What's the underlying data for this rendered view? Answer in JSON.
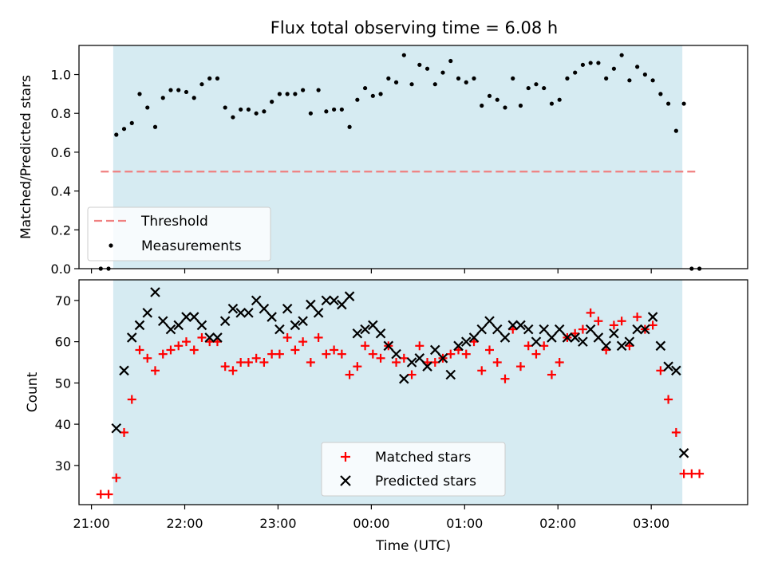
{
  "chart_data": [
    {
      "type": "scatter",
      "title": "Flux total observing time = 6.08 h",
      "ylabel": "Matched/Predicted stars",
      "xlabel": "",
      "ylim": [
        0,
        1.15
      ],
      "xlim": [
        "20:52",
        "04:02"
      ],
      "grid": false,
      "legend_position": "lower-left",
      "yticks": [
        "0.0",
        "0.2",
        "0.4",
        "0.6",
        "0.8",
        "1.0"
      ],
      "observing_window": [
        "21:14",
        "03:20"
      ],
      "observing_window_color": "#add8e6",
      "threshold": {
        "name": "Threshold",
        "y": 0.5,
        "x_range": [
          "21:06",
          "03:29"
        ],
        "color": "#f08080",
        "style": "dashed"
      },
      "series": [
        {
          "name": "Measurements",
          "color": "#000000",
          "marker": "dot",
          "x": [
            "21:06",
            "21:11",
            "21:16",
            "21:21",
            "21:26",
            "21:31",
            "21:36",
            "21:41",
            "21:46",
            "21:51",
            "21:56",
            "22:01",
            "22:06",
            "22:11",
            "22:16",
            "22:21",
            "22:26",
            "22:31",
            "22:36",
            "22:41",
            "22:46",
            "22:51",
            "22:56",
            "23:01",
            "23:06",
            "23:11",
            "23:16",
            "23:21",
            "23:26",
            "23:31",
            "23:36",
            "23:41",
            "23:46",
            "23:51",
            "23:56",
            "00:01",
            "00:06",
            "00:11",
            "00:16",
            "00:21",
            "00:26",
            "00:31",
            "00:36",
            "00:41",
            "00:46",
            "00:51",
            "00:56",
            "01:01",
            "01:06",
            "01:11",
            "01:16",
            "01:21",
            "01:26",
            "01:31",
            "01:36",
            "01:41",
            "01:46",
            "01:51",
            "01:56",
            "02:01",
            "02:06",
            "02:11",
            "02:16",
            "02:21",
            "02:26",
            "02:31",
            "02:36",
            "02:41",
            "02:46",
            "02:51",
            "02:56",
            "03:01",
            "03:06",
            "03:11",
            "03:16",
            "03:21",
            "03:26",
            "03:31"
          ],
          "y": [
            0.0,
            0.0,
            0.69,
            0.72,
            0.75,
            0.9,
            0.83,
            0.73,
            0.88,
            0.92,
            0.92,
            0.91,
            0.88,
            0.95,
            0.98,
            0.98,
            0.83,
            0.78,
            0.82,
            0.82,
            0.8,
            0.81,
            0.86,
            0.9,
            0.9,
            0.9,
            0.92,
            0.8,
            0.92,
            0.81,
            0.82,
            0.82,
            0.73,
            0.87,
            0.93,
            0.89,
            0.9,
            0.98,
            0.96,
            1.1,
            0.95,
            1.05,
            1.03,
            0.95,
            1.01,
            1.07,
            0.98,
            0.96,
            0.98,
            0.84,
            0.89,
            0.87,
            0.83,
            0.98,
            0.84,
            0.93,
            0.95,
            0.93,
            0.85,
            0.87,
            0.98,
            1.01,
            1.05,
            1.06,
            1.06,
            0.98,
            1.03,
            1.1,
            0.97,
            1.04,
            1.0,
            0.97,
            0.9,
            0.85,
            0.71,
            0.85,
            0.0,
            0.0
          ]
        }
      ]
    },
    {
      "type": "scatter",
      "title": "",
      "ylabel": "Count",
      "xlabel": "Time (UTC)",
      "ylim": [
        20.5,
        75
      ],
      "xlim": [
        "20:52",
        "04:02"
      ],
      "grid": false,
      "legend_position": "lower-center",
      "yticks": [
        "30",
        "40",
        "50",
        "60",
        "70"
      ],
      "xticks": [
        "21:00",
        "22:00",
        "23:00",
        "00:00",
        "01:00",
        "02:00",
        "03:00"
      ],
      "observing_window": [
        "21:14",
        "03:20"
      ],
      "series": [
        {
          "name": "Matched stars",
          "color": "#ff0000",
          "marker": "plus",
          "x": [
            "21:06",
            "21:11",
            "21:16",
            "21:21",
            "21:26",
            "21:31",
            "21:36",
            "21:41",
            "21:46",
            "21:51",
            "21:56",
            "22:01",
            "22:06",
            "22:11",
            "22:16",
            "22:21",
            "22:26",
            "22:31",
            "22:36",
            "22:41",
            "22:46",
            "22:51",
            "22:56",
            "23:01",
            "23:06",
            "23:11",
            "23:16",
            "23:21",
            "23:26",
            "23:31",
            "23:36",
            "23:41",
            "23:46",
            "23:51",
            "23:56",
            "00:01",
            "00:06",
            "00:11",
            "00:16",
            "00:21",
            "00:26",
            "00:31",
            "00:36",
            "00:41",
            "00:46",
            "00:51",
            "00:56",
            "01:01",
            "01:06",
            "01:11",
            "01:16",
            "01:21",
            "01:26",
            "01:31",
            "01:36",
            "01:41",
            "01:46",
            "01:51",
            "01:56",
            "02:01",
            "02:06",
            "02:11",
            "02:16",
            "02:21",
            "02:26",
            "02:31",
            "02:36",
            "02:41",
            "02:46",
            "02:51",
            "02:56",
            "03:01",
            "03:06",
            "03:11",
            "03:16",
            "03:21",
            "03:26",
            "03:31"
          ],
          "y": [
            23,
            23,
            27,
            38,
            46,
            58,
            56,
            53,
            57,
            58,
            59,
            60,
            58,
            61,
            60,
            60,
            54,
            53,
            55,
            55,
            56,
            55,
            57,
            57,
            61,
            58,
            60,
            55,
            61,
            57,
            58,
            57,
            52,
            54,
            59,
            57,
            56,
            59,
            55,
            56,
            52,
            59,
            55,
            55,
            56,
            57,
            58,
            57,
            60,
            53,
            58,
            55,
            51,
            63,
            54,
            59,
            57,
            59,
            52,
            55,
            61,
            62,
            63,
            67,
            65,
            58,
            64,
            65,
            59,
            66,
            63,
            64,
            53,
            46,
            38,
            28,
            28,
            28
          ]
        },
        {
          "name": "Predicted stars",
          "color": "#000000",
          "marker": "x",
          "x": [
            "21:16",
            "21:21",
            "21:26",
            "21:31",
            "21:36",
            "21:41",
            "21:46",
            "21:51",
            "21:56",
            "22:01",
            "22:06",
            "22:11",
            "22:16",
            "22:21",
            "22:26",
            "22:31",
            "22:36",
            "22:41",
            "22:46",
            "22:51",
            "22:56",
            "23:01",
            "23:06",
            "23:11",
            "23:16",
            "23:21",
            "23:26",
            "23:31",
            "23:36",
            "23:41",
            "23:46",
            "23:51",
            "23:56",
            "00:01",
            "00:06",
            "00:11",
            "00:16",
            "00:21",
            "00:26",
            "00:31",
            "00:36",
            "00:41",
            "00:46",
            "00:51",
            "00:56",
            "01:01",
            "01:06",
            "01:11",
            "01:16",
            "01:21",
            "01:26",
            "01:31",
            "01:36",
            "01:41",
            "01:46",
            "01:51",
            "01:56",
            "02:01",
            "02:06",
            "02:11",
            "02:16",
            "02:21",
            "02:26",
            "02:31",
            "02:36",
            "02:41",
            "02:46",
            "02:51",
            "02:56",
            "03:01",
            "03:06",
            "03:11",
            "03:16",
            "03:21"
          ],
          "y": [
            39,
            53,
            61,
            64,
            67,
            72,
            65,
            63,
            64,
            66,
            66,
            64,
            61,
            61,
            65,
            68,
            67,
            67,
            70,
            68,
            66,
            63,
            68,
            64,
            65,
            69,
            67,
            70,
            70,
            69,
            71,
            62,
            63,
            64,
            62,
            59,
            57,
            51,
            55,
            56,
            54,
            58,
            56,
            52,
            59,
            60,
            61,
            63,
            65,
            63,
            61,
            64,
            64,
            63,
            60,
            63,
            61,
            63,
            61,
            61,
            60,
            63,
            61,
            59,
            62,
            59,
            60,
            63,
            63,
            66,
            59,
            54,
            53,
            33
          ]
        }
      ]
    }
  ]
}
